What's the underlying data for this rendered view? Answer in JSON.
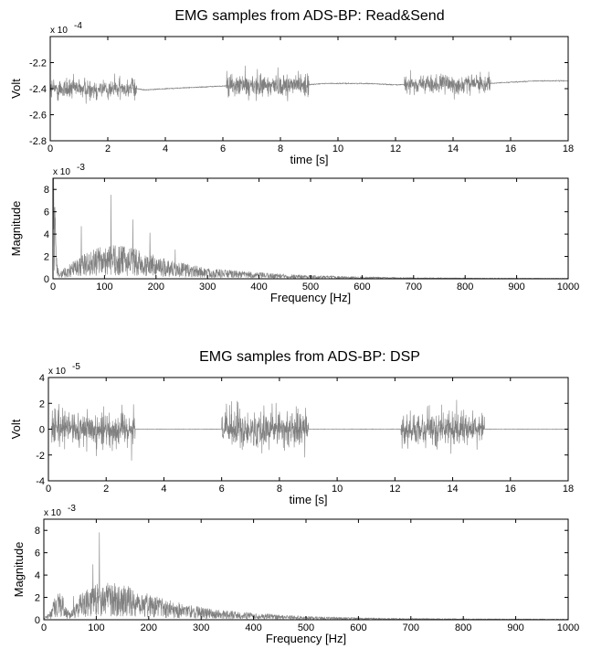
{
  "figure": {
    "title_top": "EMG samples from ADS-BP: Read&Send",
    "title_bottom": "EMG samples from ADS-BP: DSP"
  },
  "colors": {
    "signal": "#808080",
    "axes": "#000000",
    "background": "#ffffff"
  },
  "chart_data": [
    {
      "type": "line",
      "xlabel": "time [s]",
      "ylabel": "Volt",
      "exponent": "x 10",
      "exponent_power": "-4",
      "xlim": [
        0,
        18
      ],
      "ylim": [
        -2.8,
        -2.0
      ],
      "xticks": [
        "0",
        "2",
        "4",
        "6",
        "8",
        "10",
        "12",
        "14",
        "16",
        "18"
      ],
      "yticks": [
        "-2.2",
        "-2.4",
        "-2.6",
        "-2.8"
      ],
      "grid": false,
      "series": [
        {
          "baseline": [
            [
              0,
              -2.4
            ],
            [
              3,
              -2.4
            ],
            [
              3.3,
              -2.41
            ],
            [
              4,
              -2.4
            ],
            [
              5,
              -2.39
            ],
            [
              6,
              -2.38
            ],
            [
              6.2,
              -2.38
            ],
            [
              9,
              -2.37
            ],
            [
              9.5,
              -2.36
            ],
            [
              10,
              -2.36
            ],
            [
              11,
              -2.36
            ],
            [
              12,
              -2.37
            ],
            [
              15.3,
              -2.36
            ],
            [
              16,
              -2.35
            ],
            [
              17,
              -2.34
            ],
            [
              18,
              -2.34
            ]
          ],
          "bursts": [
            {
              "start": 0.0,
              "end": 3.0,
              "amplitude": 0.17
            },
            {
              "start": 6.1,
              "end": 9.0,
              "amplitude": 0.2
            },
            {
              "start": 12.3,
              "end": 15.3,
              "amplitude": 0.15
            }
          ],
          "quiet_noise": 0.008
        }
      ]
    },
    {
      "type": "line",
      "xlabel": "Frequency [Hz]",
      "ylabel": "Magnitude",
      "exponent": "x 10",
      "exponent_power": "-3",
      "xlim": [
        0,
        1000
      ],
      "ylim": [
        0,
        9
      ],
      "xticks": [
        "0",
        "100",
        "200",
        "300",
        "400",
        "500",
        "600",
        "700",
        "800",
        "900",
        "1000"
      ],
      "yticks": [
        "0",
        "2",
        "4",
        "6",
        "8"
      ],
      "grid": false,
      "series": [
        {
          "envelope": [
            [
              0,
              9.0
            ],
            [
              3,
              5.0
            ],
            [
              8,
              1.0
            ],
            [
              15,
              0.4
            ],
            [
              30,
              0.8
            ],
            [
              60,
              1.4
            ],
            [
              100,
              1.9
            ],
            [
              150,
              1.8
            ],
            [
              200,
              1.3
            ],
            [
              250,
              0.9
            ],
            [
              300,
              0.6
            ],
            [
              400,
              0.35
            ],
            [
              500,
              0.2
            ],
            [
              600,
              0.12
            ],
            [
              700,
              0.07
            ],
            [
              800,
              0.05
            ],
            [
              900,
              0.04
            ],
            [
              1000,
              0.03
            ]
          ],
          "peak": 7.5
        }
      ]
    },
    {
      "type": "line",
      "xlabel": "time [s]",
      "ylabel": "Volt",
      "exponent": "x 10",
      "exponent_power": "-5",
      "xlim": [
        0,
        18
      ],
      "ylim": [
        -4,
        4
      ],
      "xticks": [
        "0",
        "2",
        "4",
        "6",
        "8",
        "10",
        "12",
        "14",
        "16",
        "18"
      ],
      "yticks": [
        "4",
        "2",
        "0",
        "-2",
        "-4"
      ],
      "grid": false,
      "series": [
        {
          "baseline": [
            [
              0,
              0
            ],
            [
              18,
              0
            ]
          ],
          "bursts": [
            {
              "start": 0.1,
              "end": 3.0,
              "amplitude": 3.0
            },
            {
              "start": 6.0,
              "end": 9.0,
              "amplitude": 3.2
            },
            {
              "start": 12.2,
              "end": 15.1,
              "amplitude": 2.8
            }
          ],
          "quiet_noise": 0.04
        }
      ]
    },
    {
      "type": "line",
      "xlabel": "Frequency [Hz]",
      "ylabel": "Magnitude",
      "exponent": "x 10",
      "exponent_power": "-3",
      "xlim": [
        0,
        1000
      ],
      "ylim": [
        0,
        9
      ],
      "xticks": [
        "0",
        "100",
        "200",
        "300",
        "400",
        "500",
        "600",
        "700",
        "800",
        "900",
        "1000"
      ],
      "yticks": [
        "0",
        "2",
        "4",
        "6",
        "8"
      ],
      "grid": false,
      "series": [
        {
          "envelope": [
            [
              0,
              0.1
            ],
            [
              10,
              0.4
            ],
            [
              20,
              1.3
            ],
            [
              28,
              1.7
            ],
            [
              38,
              1.2
            ],
            [
              48,
              0.4
            ],
            [
              55,
              0.6
            ],
            [
              70,
              1.5
            ],
            [
              100,
              2.0
            ],
            [
              130,
              2.1
            ],
            [
              170,
              1.8
            ],
            [
              220,
              1.3
            ],
            [
              270,
              0.9
            ],
            [
              320,
              0.6
            ],
            [
              400,
              0.38
            ],
            [
              500,
              0.2
            ],
            [
              600,
              0.12
            ],
            [
              700,
              0.08
            ],
            [
              800,
              0.06
            ],
            [
              900,
              0.05
            ],
            [
              1000,
              0.04
            ]
          ],
          "peak": 7.8
        }
      ]
    }
  ]
}
